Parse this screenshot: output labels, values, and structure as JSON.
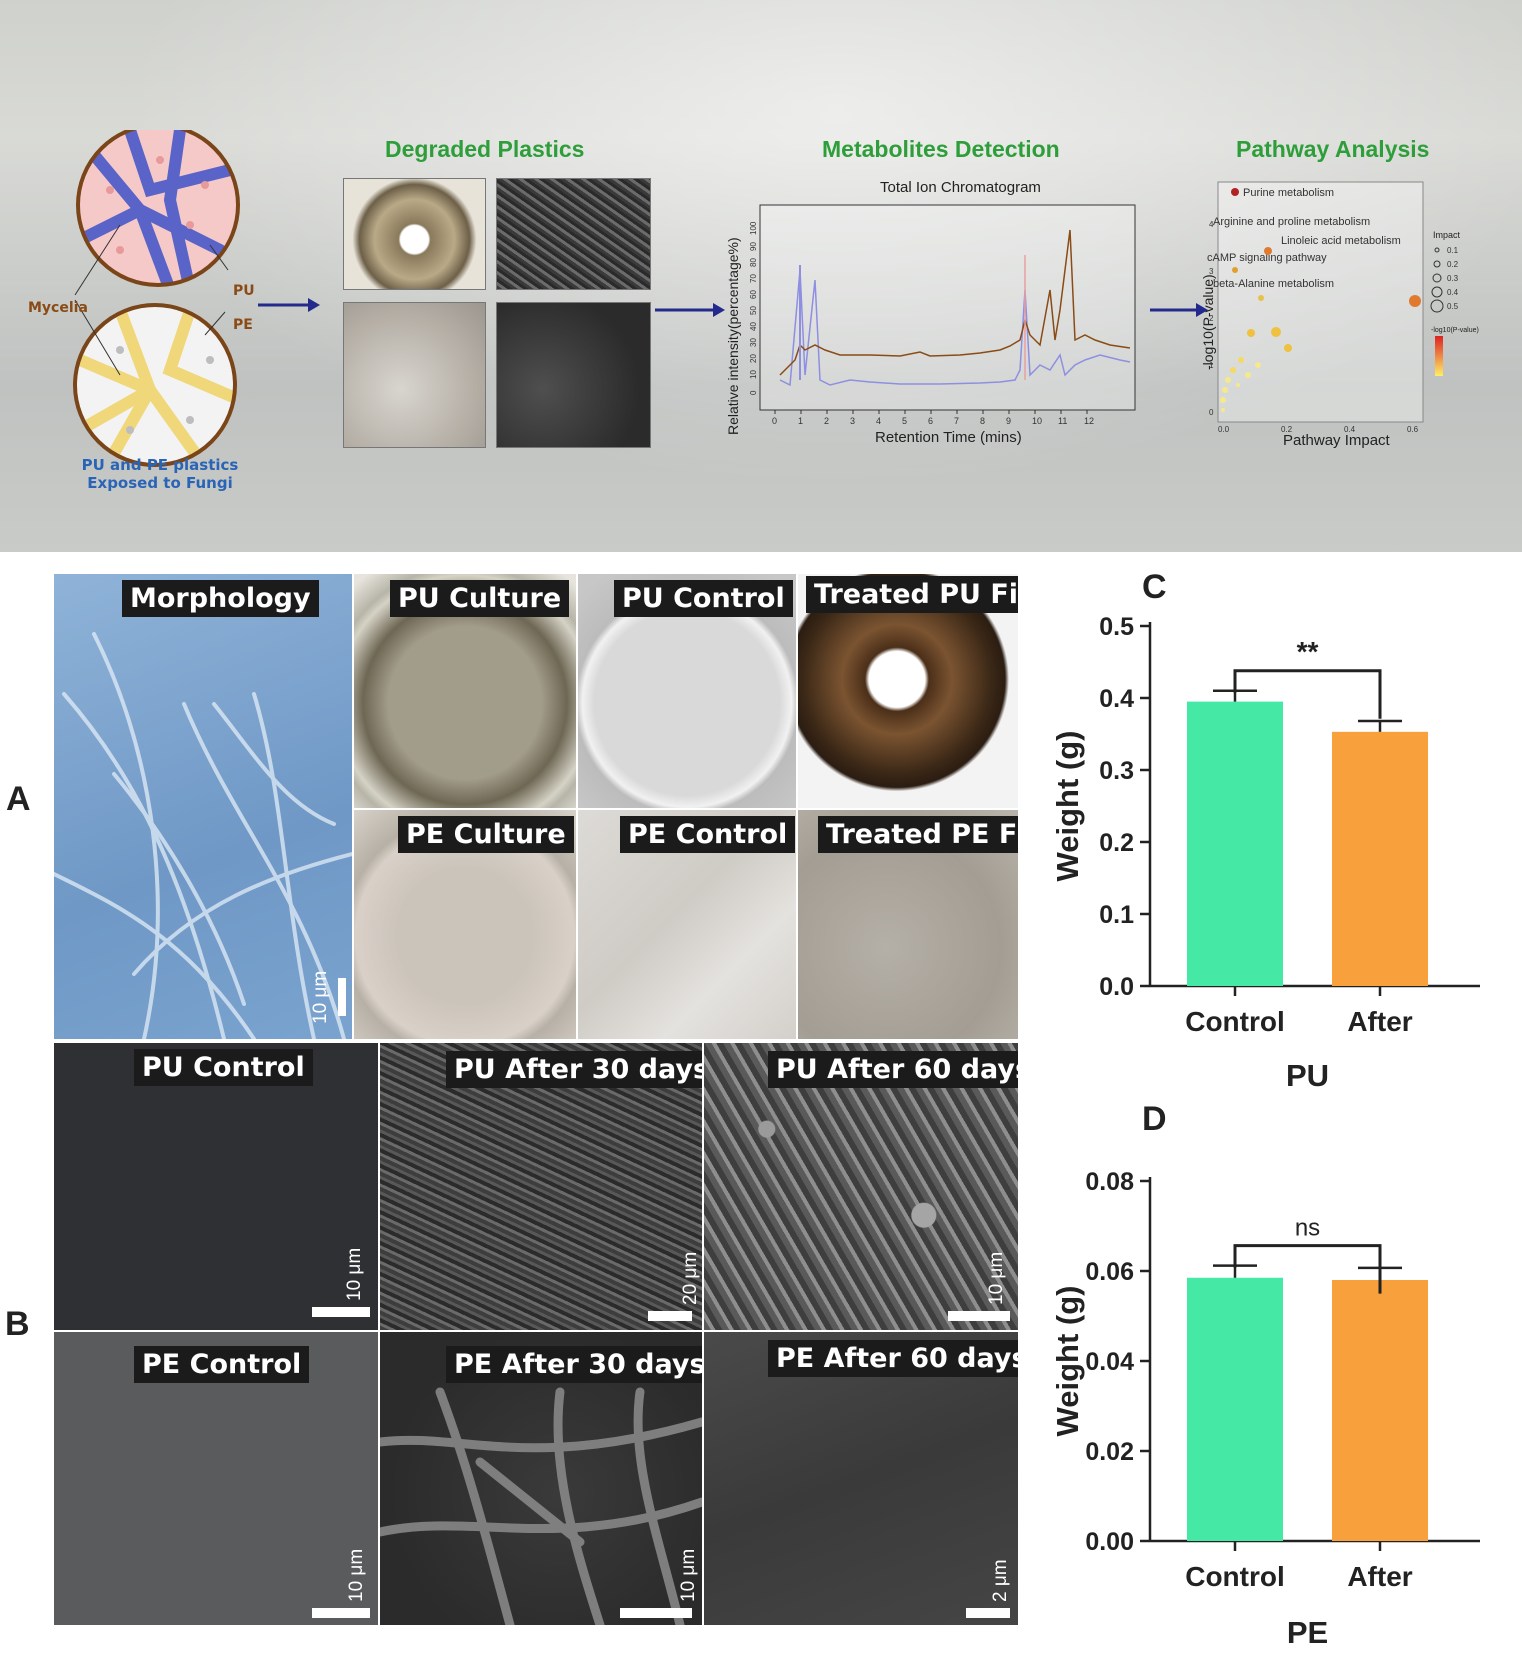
{
  "abstract": {
    "step_titles": [
      "Degraded Plastics",
      "Metabolites Detection",
      "Pathway Analysis"
    ],
    "fungi_caption_line1": "PU and PE plastics",
    "fungi_caption_line2": "Exposed to Fungi",
    "label_mycelia": "Mycelia",
    "label_pu": "PU",
    "label_pe": "PE",
    "chromatogram": {
      "title": "Total Ion Chromatogram",
      "xlabel": "Retention Time (mins)",
      "ylabel": "Relative intensity(percentage%)",
      "x_ticks": [
        "0",
        "1",
        "2",
        "3",
        "4",
        "5",
        "6",
        "7",
        "8",
        "9",
        "10",
        "11",
        "12"
      ],
      "y_ticks": [
        "0",
        "10",
        "20",
        "30",
        "40",
        "50",
        "60",
        "70",
        "80",
        "90",
        "100"
      ]
    },
    "pathway": {
      "xlabel": "Pathway Impact",
      "ylabel": "-log10(P-value)",
      "x_ticks": [
        "0.0",
        "0.2",
        "0.4",
        "0.6"
      ],
      "y_ticks": [
        "0",
        "1",
        "2",
        "3",
        "4"
      ],
      "annotations": [
        "Purine metabolism",
        "Arginine and proline metabolism",
        "Linoleic acid metabolism",
        "cAMP signaling pathway",
        "beta-Alanine metabolism"
      ],
      "legend_title": "Impact",
      "legend_sizes": [
        "0.1",
        "0.2",
        "0.3",
        "0.4",
        "0.5"
      ],
      "color_title": "-log10(P-value)"
    }
  },
  "panel_letters": {
    "a": "A",
    "b": "B",
    "c": "C",
    "d": "D"
  },
  "panel_a": {
    "labels": [
      "Morphology",
      "PU Culture",
      "PU Control",
      "Treated PU Film",
      "PE Culture",
      "PE Control",
      "Treated PE Film"
    ],
    "scale": "10 μm"
  },
  "panel_b": {
    "labels": [
      "PU Control",
      "PU After 30 days",
      "PU After 60 days",
      "PE Control",
      "PE After 30 days",
      "PE After 60 days"
    ],
    "scales": [
      "10 μm",
      "20 μm",
      "10 μm",
      "10 μm",
      "10 μm",
      "2 μm"
    ]
  },
  "colors": {
    "control": "#46e8a6",
    "after": "#f8a03c",
    "green_title": "#2e9e3a",
    "blue_caption": "#2a64b6"
  },
  "chart_data": [
    {
      "type": "bar",
      "title": "PU",
      "ylabel": "Weight (g)",
      "categories": [
        "Control",
        "After"
      ],
      "values": [
        0.395,
        0.353
      ],
      "errors": [
        0.015,
        0.015
      ],
      "ylim": [
        0,
        0.5
      ],
      "y_ticks": [
        "0.0",
        "0.1",
        "0.2",
        "0.3",
        "0.4",
        "0.5"
      ],
      "significance": "**"
    },
    {
      "type": "bar",
      "title": "PE",
      "ylabel": "Weight (g)",
      "categories": [
        "Control",
        "After"
      ],
      "values": [
        0.0585,
        0.058
      ],
      "errors": [
        0.0027,
        0.0027
      ],
      "ylim": [
        0,
        0.08
      ],
      "y_ticks": [
        "0.00",
        "0.02",
        "0.04",
        "0.06",
        "0.08"
      ],
      "significance": "ns"
    }
  ]
}
